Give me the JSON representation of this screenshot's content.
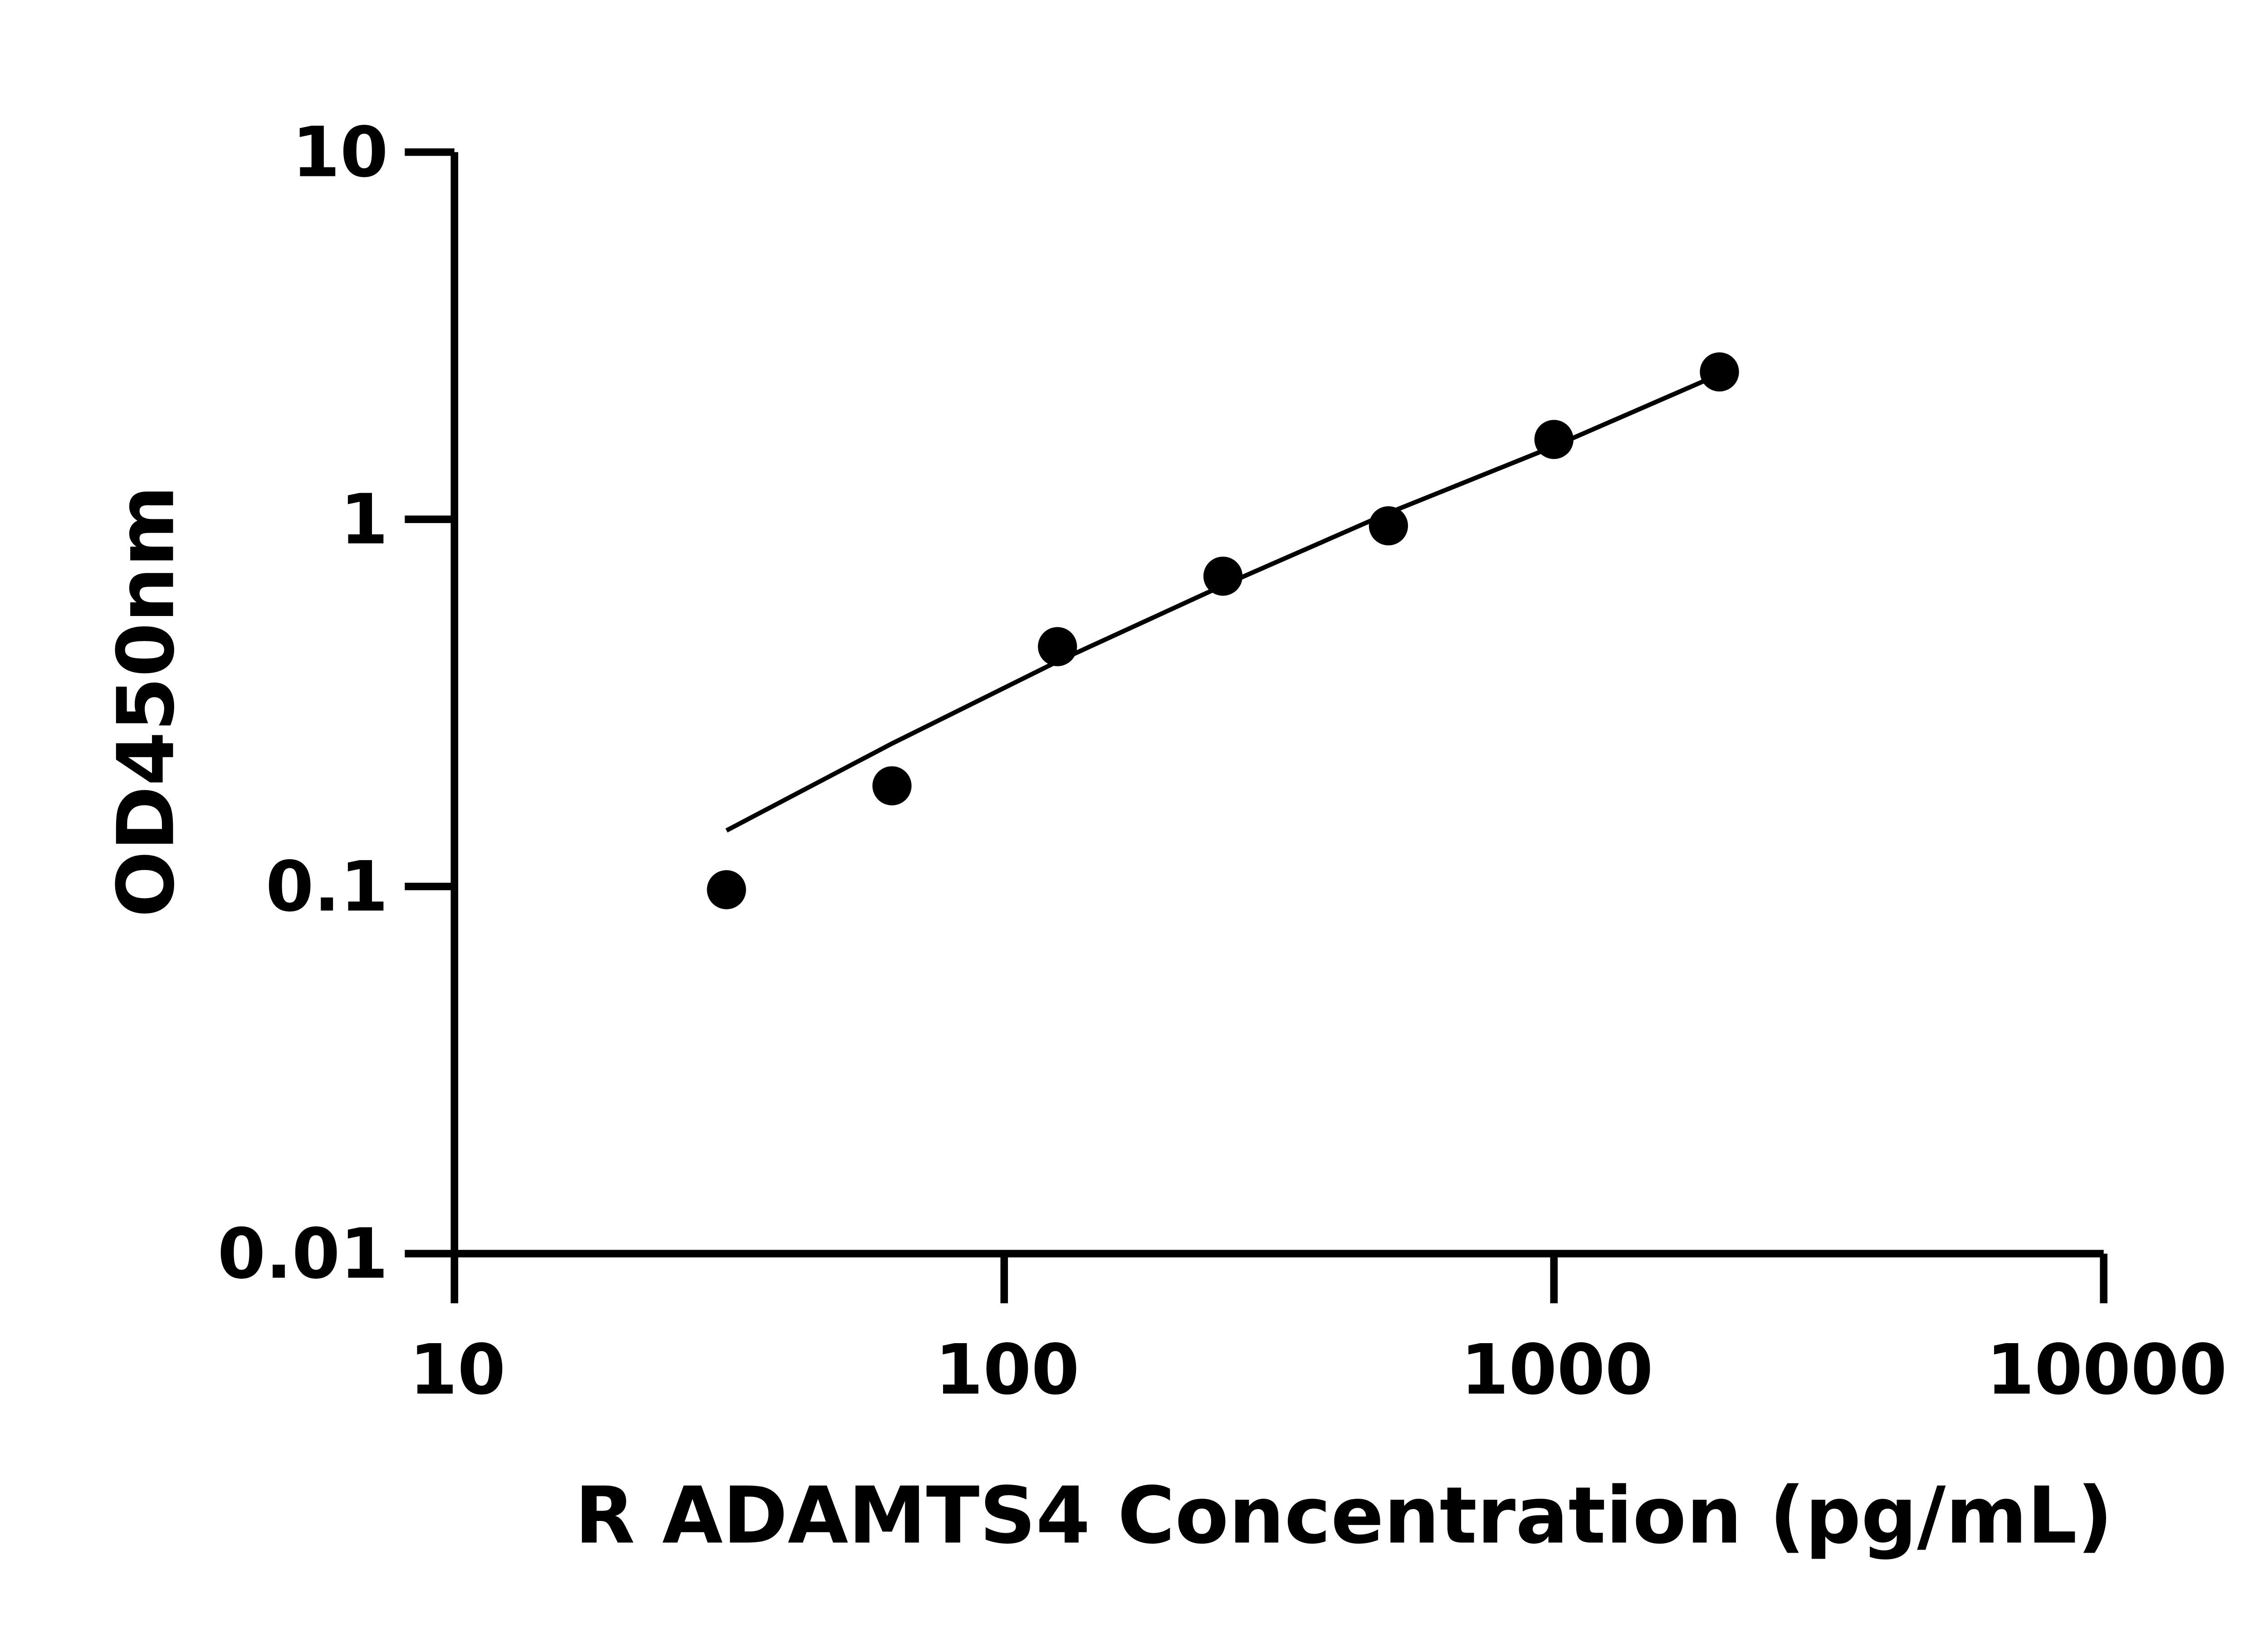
{
  "chart_data": {
    "type": "scatter",
    "title": "",
    "xlabel": "R ADAMTS4 Concentration (pg/mL)",
    "ylabel": "OD450nm",
    "x_scale": "log",
    "y_scale": "log",
    "xlim": [
      10,
      10000
    ],
    "ylim": [
      0.01,
      10
    ],
    "x_ticks": [
      "10",
      "100",
      "1000",
      "10000"
    ],
    "y_ticks": [
      "0.01",
      "0.1",
      "1",
      "10"
    ],
    "grid": false,
    "legend": "none",
    "colors": {
      "points": "#000000",
      "line": "#000000",
      "axes": "#000000"
    },
    "series": [
      {
        "x": [
          31.25,
          62.5,
          125,
          250,
          500,
          1000,
          2000
        ],
        "y": [
          0.098,
          0.188,
          0.45,
          0.7,
          0.96,
          1.65,
          2.52
        ]
      }
    ],
    "fit_line": {
      "x": [
        31.25,
        62.5,
        125,
        250,
        500,
        1000,
        1900
      ],
      "y": [
        0.142,
        0.245,
        0.41,
        0.66,
        1.04,
        1.58,
        2.4
      ]
    }
  }
}
